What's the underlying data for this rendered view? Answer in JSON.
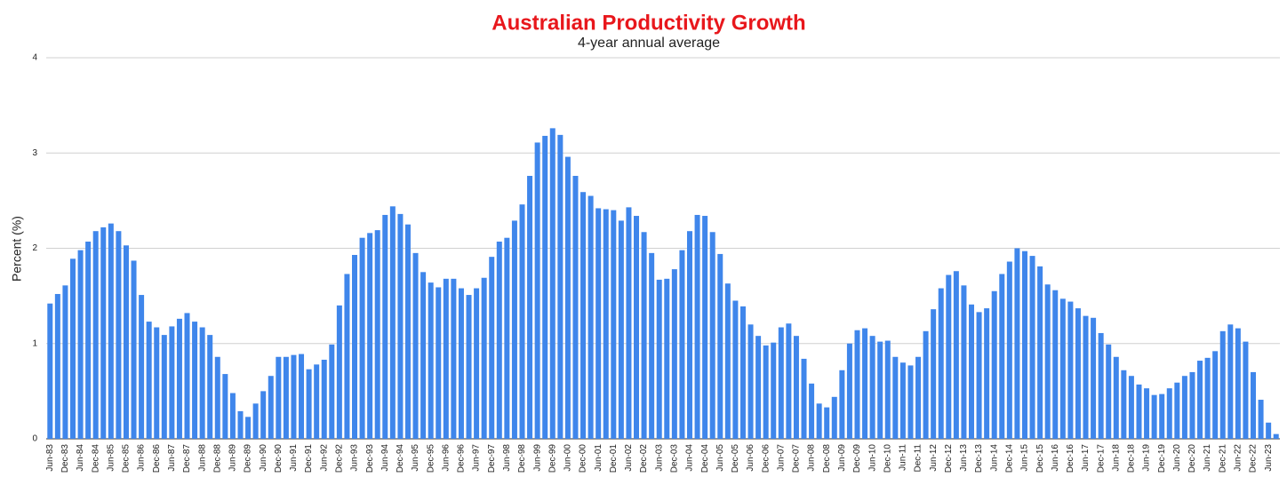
{
  "chart_data": {
    "type": "bar",
    "title": "Australian Productivity Growth",
    "subtitle": "4-year annual average",
    "ylabel": "Percent (%)",
    "color": "#3f86eb",
    "title_color": "#e8171c",
    "grid": true,
    "ylim": [
      0,
      4
    ],
    "yticks": [
      0,
      1,
      2,
      3,
      4
    ],
    "categories": [
      "Jun-83",
      null,
      "Dec-83",
      null,
      "Jun-84",
      null,
      "Dec-84",
      null,
      "Jun-85",
      null,
      "Dec-85",
      null,
      "Jun-86",
      null,
      "Dec-86",
      null,
      "Jun-87",
      null,
      "Dec-87",
      null,
      "Jun-88",
      null,
      "Dec-88",
      null,
      "Jun-89",
      null,
      "Dec-89",
      null,
      "Jun-90",
      null,
      "Dec-90",
      null,
      "Jun-91",
      null,
      "Dec-91",
      null,
      "Jun-92",
      null,
      "Dec-92",
      null,
      "Jun-93",
      null,
      "Dec-93",
      null,
      "Jun-94",
      null,
      "Dec-94",
      null,
      "Jun-95",
      null,
      "Dec-95",
      null,
      "Jun-96",
      null,
      "Dec-96",
      null,
      "Jun-97",
      null,
      "Dec-97",
      null,
      "Jun-98",
      null,
      "Dec-98",
      null,
      "Jun-99",
      null,
      "Dec-99",
      null,
      "Jun-00",
      null,
      "Dec-00",
      null,
      "Jun-01",
      null,
      "Dec-01",
      null,
      "Jun-02",
      null,
      "Dec-02",
      null,
      "Jun-03",
      null,
      "Dec-03",
      null,
      "Jun-04",
      null,
      "Dec-04",
      null,
      "Jun-05",
      null,
      "Dec-05",
      null,
      "Jun-06",
      null,
      "Dec-06",
      null,
      "Jun-07",
      null,
      "Dec-07",
      null,
      "Jun-08",
      null,
      "Dec-08",
      null,
      "Jun-09",
      null,
      "Dec-09",
      null,
      "Jun-10",
      null,
      "Dec-10",
      null,
      "Jun-11",
      null,
      "Dec-11",
      null,
      "Jun-12",
      null,
      "Dec-12",
      null,
      "Jun-13",
      null,
      "Dec-13",
      null,
      "Jun-14",
      null,
      "Dec-14",
      null,
      "Jun-15",
      null,
      "Dec-15",
      null,
      "Jun-16",
      null,
      "Dec-16",
      null,
      "Jun-17",
      null,
      "Dec-17",
      null,
      "Jun-18",
      null,
      "Dec-18",
      null,
      "Jun-19",
      null,
      "Dec-19",
      null,
      "Jun-20",
      null,
      "Dec-20",
      null,
      "Jun-21",
      null,
      "Dec-21",
      null,
      "Jun-22",
      null,
      "Dec-22",
      null,
      "Jun-23",
      null
    ],
    "values": [
      1.42,
      1.52,
      1.61,
      1.89,
      1.98,
      2.07,
      2.18,
      2.22,
      2.26,
      2.18,
      2.03,
      1.87,
      1.51,
      1.23,
      1.17,
      1.09,
      1.18,
      1.26,
      1.32,
      1.23,
      1.17,
      1.09,
      0.86,
      0.68,
      0.48,
      0.29,
      0.23,
      0.37,
      0.5,
      0.66,
      0.86,
      0.86,
      0.88,
      0.89,
      0.73,
      0.78,
      0.83,
      0.99,
      1.4,
      1.73,
      1.93,
      2.11,
      2.16,
      2.19,
      2.35,
      2.44,
      2.36,
      2.25,
      1.95,
      1.75,
      1.64,
      1.59,
      1.68,
      1.68,
      1.58,
      1.51,
      1.58,
      1.69,
      1.91,
      2.07,
      2.11,
      2.29,
      2.46,
      2.76,
      3.11,
      3.18,
      3.26,
      3.19,
      2.96,
      2.76,
      2.59,
      2.55,
      2.42,
      2.41,
      2.4,
      2.29,
      2.43,
      2.34,
      2.17,
      1.95,
      1.67,
      1.68,
      1.78,
      1.98,
      2.18,
      2.35,
      2.34,
      2.17,
      1.94,
      1.63,
      1.45,
      1.39,
      1.2,
      1.08,
      0.98,
      1.01,
      1.17,
      1.21,
      1.08,
      0.84,
      0.58,
      0.37,
      0.33,
      0.44,
      0.72,
      1.0,
      1.14,
      1.16,
      1.08,
      1.02,
      1.03,
      0.86,
      0.8,
      0.77,
      0.86,
      1.13,
      1.36,
      1.58,
      1.72,
      1.76,
      1.61,
      1.41,
      1.33,
      1.37,
      1.55,
      1.73,
      1.86,
      2.0,
      1.97,
      1.92,
      1.81,
      1.62,
      1.56,
      1.47,
      1.44,
      1.37,
      1.29,
      1.27,
      1.11,
      0.99,
      0.86,
      0.72,
      0.66,
      0.57,
      0.53,
      0.46,
      0.47,
      0.53,
      0.59,
      0.66,
      0.7,
      0.82,
      0.85,
      0.92,
      1.13,
      1.2,
      1.16,
      1.02,
      0.7,
      0.41,
      0.17,
      0.05
    ]
  }
}
